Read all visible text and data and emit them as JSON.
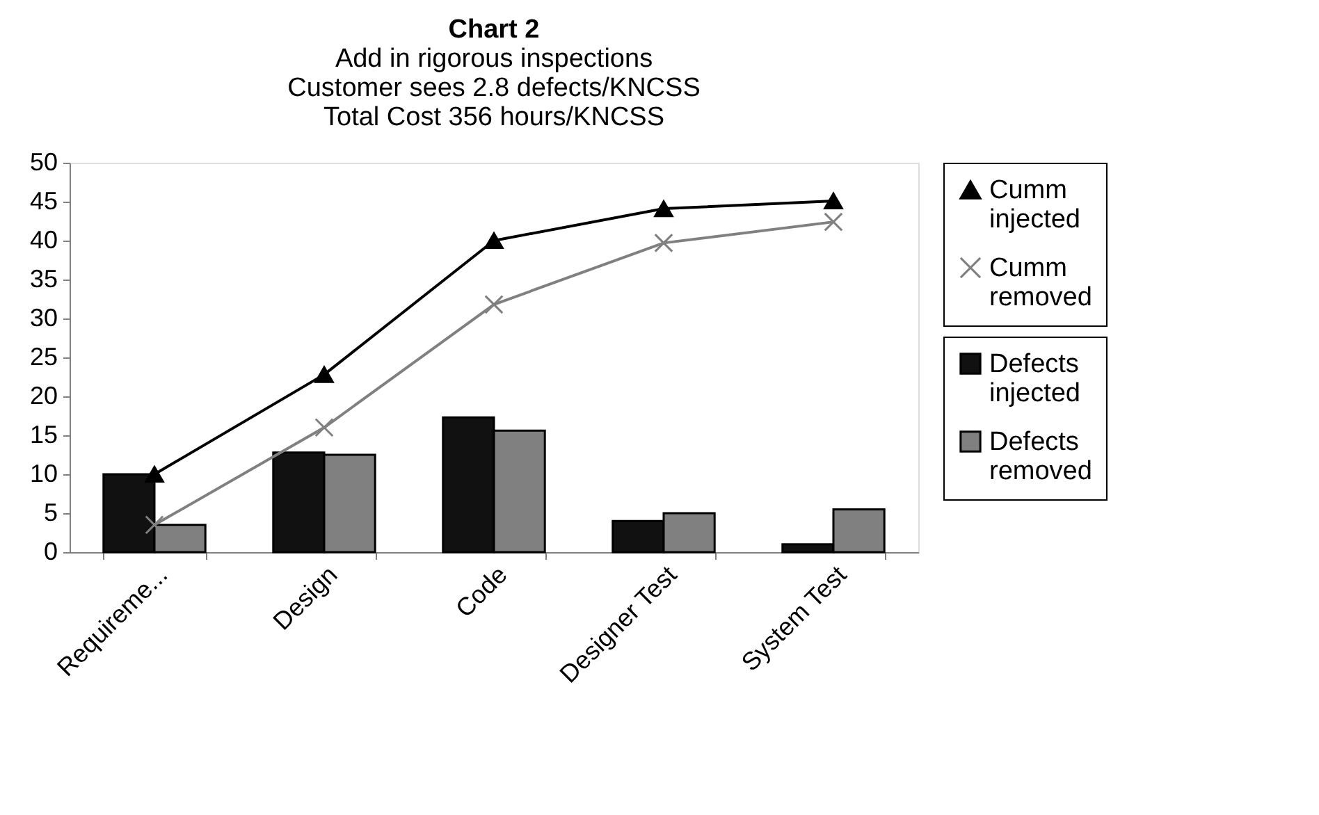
{
  "chart_data": {
    "type": "bar",
    "title": "Chart 2",
    "subtitle": [
      "Add in rigorous inspections",
      "Customer sees 2.8 defects/KNCSS",
      "Total Cost 356 hours/KNCSS"
    ],
    "categories": [
      "Requireme...",
      "Design",
      "Code",
      "Designer Test",
      "System Test"
    ],
    "series": [
      {
        "name": "Defects injected",
        "color": "#111111",
        "values": [
          10,
          12.8,
          17.3,
          4,
          1
        ]
      },
      {
        "name": "Defects removed",
        "color": "#808080",
        "values": [
          3.5,
          12.5,
          15.6,
          5,
          5.5
        ]
      },
      {
        "name": "Cumm injected",
        "type": "line",
        "color": "#000000",
        "marker": "triangle",
        "line_style": "solid",
        "values": [
          10,
          22.8,
          40,
          44.1,
          45.1
        ]
      },
      {
        "name": "Cumm removed",
        "type": "line",
        "color": "#808080",
        "marker": "cross",
        "line_style": "solid",
        "values": [
          3.5,
          16,
          31.8,
          39.7,
          42.4
        ]
      }
    ],
    "ylim": [
      0,
      50
    ],
    "yticks": [
      0,
      5,
      10,
      15,
      20,
      25,
      30,
      35,
      40,
      45,
      50
    ],
    "grid": false,
    "legend": "right"
  }
}
